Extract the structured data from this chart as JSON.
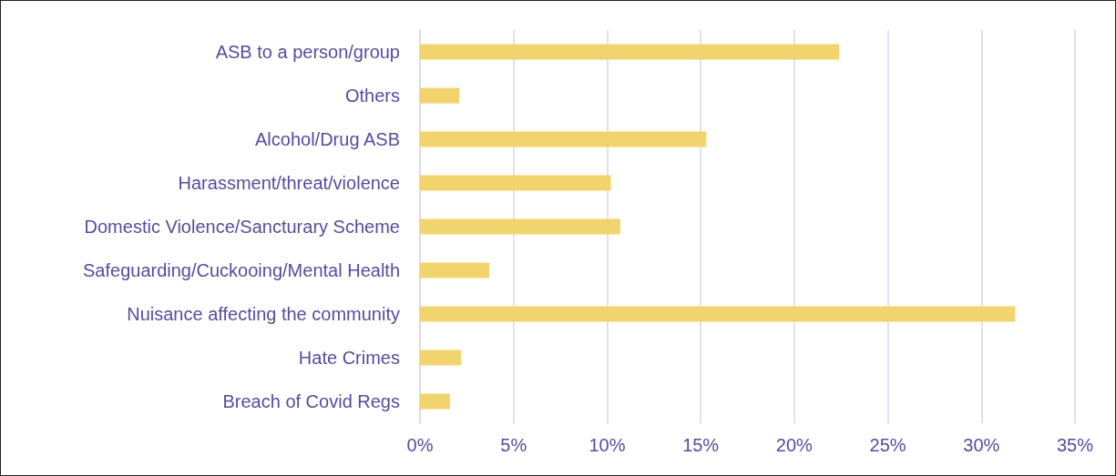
{
  "chart_data": {
    "type": "bar",
    "orientation": "horizontal",
    "categories": [
      "ASB to a person/group",
      "Others",
      "Alcohol/Drug ASB",
      "Harassment/threat/violence",
      "Domestic Violence/Sancturary Scheme",
      "Safeguarding/Cuckooing/Mental Health",
      "Nuisance affecting the community",
      "Hate Crimes",
      "Breach of Covid Regs"
    ],
    "values": [
      22.4,
      2.1,
      15.3,
      10.2,
      10.7,
      3.7,
      31.8,
      2.2,
      1.6
    ],
    "color": "#f2d46f",
    "xlim": [
      0,
      35
    ],
    "xticks": [
      {
        "value": 0,
        "label": "0%"
      },
      {
        "value": 5,
        "label": "5%"
      },
      {
        "value": 10,
        "label": "10%"
      },
      {
        "value": 15,
        "label": "15%"
      },
      {
        "value": 20,
        "label": "20%"
      },
      {
        "value": 25,
        "label": "25%"
      },
      {
        "value": 30,
        "label": "30%"
      },
      {
        "value": 35,
        "label": "35%"
      }
    ],
    "grid": "x"
  }
}
